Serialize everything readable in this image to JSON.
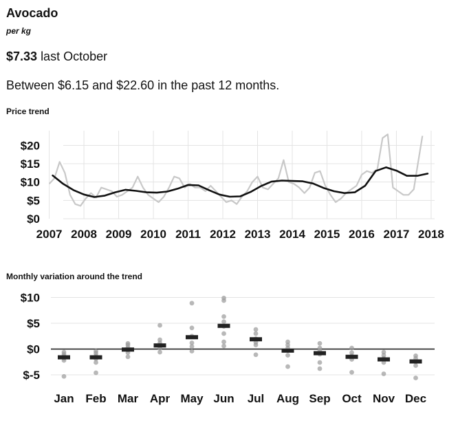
{
  "header": {
    "title": "Avocado",
    "unit": "per kg",
    "price_value": "$7.33",
    "price_suffix": "last October",
    "range_text": "Between $6.15 and $22.60 in the past 12 months."
  },
  "colors": {
    "trend_line": "#111111",
    "raw_line": "#c8c8c8",
    "grid": "#e3e3e3",
    "points": "#9a9a9a",
    "median": "#222222"
  },
  "chart_data": [
    {
      "type": "line",
      "title": "Price trend",
      "xlabel": "",
      "ylabel": "",
      "xlim": [
        2006.85,
        2018.1
      ],
      "ylim": [
        0,
        24
      ],
      "grid": true,
      "x_ticks": [
        2007,
        2008,
        2009,
        2010,
        2011,
        2012,
        2013,
        2014,
        2015,
        2016,
        2017,
        2018
      ],
      "x_tick_labels": [
        "2007",
        "2008",
        "2009",
        "2010",
        "2011",
        "2012",
        "2013",
        "2014",
        "2015",
        "2016",
        "2017",
        "2018"
      ],
      "y_ticks": [
        0,
        5,
        10,
        15,
        20
      ],
      "y_tick_labels": [
        "$0",
        "$5",
        "$10",
        "$15",
        "$20"
      ],
      "series": [
        {
          "role": "monthly price",
          "x": [
            2007.0,
            2007.15,
            2007.3,
            2007.45,
            2007.6,
            2007.75,
            2007.9,
            2008.05,
            2008.2,
            2008.35,
            2008.5,
            2008.65,
            2008.8,
            2008.95,
            2009.1,
            2009.25,
            2009.4,
            2009.55,
            2009.7,
            2009.85,
            2010.0,
            2010.15,
            2010.3,
            2010.45,
            2010.6,
            2010.75,
            2010.9,
            2011.05,
            2011.2,
            2011.35,
            2011.5,
            2011.65,
            2011.8,
            2011.95,
            2012.1,
            2012.25,
            2012.4,
            2012.55,
            2012.7,
            2012.85,
            2013.0,
            2013.15,
            2013.3,
            2013.45,
            2013.6,
            2013.75,
            2013.9,
            2014.05,
            2014.2,
            2014.35,
            2014.5,
            2014.65,
            2014.8,
            2014.95,
            2015.1,
            2015.25,
            2015.4,
            2015.55,
            2015.7,
            2015.85,
            2016.0,
            2016.15,
            2016.3,
            2016.45,
            2016.6,
            2016.75,
            2016.9,
            2017.05,
            2017.2,
            2017.35,
            2017.5,
            2017.6,
            2017.75
          ],
          "y": [
            9.5,
            11.0,
            15.5,
            12.5,
            6.5,
            4.0,
            3.5,
            5.5,
            7.0,
            5.8,
            8.5,
            8.0,
            7.5,
            6.0,
            6.5,
            7.5,
            8.5,
            11.5,
            8.5,
            6.5,
            5.5,
            4.5,
            6.0,
            8.5,
            11.5,
            11.0,
            8.5,
            9.5,
            8.5,
            8.5,
            7.5,
            9.0,
            7.5,
            6.0,
            4.5,
            5.0,
            4.0,
            6.0,
            7.5,
            10.0,
            11.5,
            8.5,
            8.0,
            9.5,
            11.0,
            16.0,
            10.0,
            9.5,
            8.5,
            7.0,
            8.5,
            12.5,
            13.0,
            9.0,
            6.5,
            4.5,
            5.5,
            7.0,
            8.0,
            9.0,
            12.0,
            13.0,
            12.5,
            13.5,
            22.0,
            23.0,
            8.5,
            7.5,
            6.5,
            6.5,
            8.0,
            14.0,
            22.6
          ]
        },
        {
          "role": "trend",
          "x": [
            2007.1,
            2007.4,
            2007.7,
            2008.0,
            2008.3,
            2008.6,
            2008.9,
            2009.2,
            2009.5,
            2009.8,
            2010.1,
            2010.4,
            2010.7,
            2011.0,
            2011.3,
            2011.6,
            2011.9,
            2012.2,
            2012.5,
            2012.8,
            2013.1,
            2013.4,
            2013.7,
            2014.0,
            2014.3,
            2014.6,
            2014.9,
            2015.2,
            2015.5,
            2015.8,
            2016.1,
            2016.4,
            2016.7,
            2017.0,
            2017.3,
            2017.6,
            2017.9
          ],
          "y": [
            11.8,
            9.5,
            7.8,
            6.6,
            5.9,
            6.3,
            7.2,
            7.9,
            7.6,
            7.2,
            7.1,
            7.4,
            8.2,
            9.2,
            9.1,
            7.8,
            6.6,
            6.0,
            6.1,
            7.3,
            8.9,
            10.1,
            10.4,
            10.3,
            10.2,
            9.6,
            8.4,
            7.5,
            7.0,
            7.2,
            9.0,
            13.0,
            14.0,
            13.1,
            11.7,
            11.7,
            12.3
          ]
        }
      ]
    },
    {
      "type": "scatter",
      "title": "Monthly variation around the trend",
      "xlabel": "",
      "ylabel": "",
      "ylim": [
        -7,
        11
      ],
      "grid": true,
      "zero_line": true,
      "categories": [
        "Jan",
        "Feb",
        "Mar",
        "Apr",
        "May",
        "Jun",
        "Jul",
        "Aug",
        "Sep",
        "Oct",
        "Nov",
        "Dec"
      ],
      "y_ticks": [
        -5,
        0,
        5,
        10
      ],
      "y_tick_labels": [
        "$-5",
        "$0",
        "$5",
        "$10"
      ],
      "medians": [
        -1.6,
        -1.6,
        -0.1,
        0.7,
        2.3,
        4.5,
        1.9,
        -0.3,
        -0.8,
        -1.5,
        -2.0,
        -2.4
      ],
      "points": [
        [
          -5.3,
          -2.2,
          -1.8,
          -1.4,
          -1.0,
          -0.6
        ],
        [
          -4.6,
          -2.6,
          -1.9,
          -1.3,
          -0.8,
          -0.4
        ],
        [
          -1.5,
          -0.7,
          -0.2,
          0.3,
          0.8,
          1.1
        ],
        [
          -0.6,
          0.2,
          0.8,
          1.2,
          1.8,
          4.6
        ],
        [
          -0.4,
          0.5,
          1.2,
          2.5,
          4.1,
          8.9
        ],
        [
          0.6,
          1.4,
          3.0,
          4.4,
          5.3,
          6.3,
          9.4,
          9.9
        ],
        [
          -1.1,
          0.8,
          1.3,
          2.0,
          3.0,
          3.8
        ],
        [
          -3.4,
          -1.2,
          -0.3,
          0.2,
          0.8,
          1.4
        ],
        [
          -3.8,
          -2.6,
          -1.0,
          -0.3,
          0.2,
          1.1
        ],
        [
          -4.5,
          -2.0,
          -1.3,
          -0.7,
          0.2
        ],
        [
          -4.8,
          -2.6,
          -1.8,
          -1.2,
          -0.6
        ],
        [
          -5.6,
          -3.2,
          -2.5,
          -1.8,
          -1.3
        ]
      ]
    }
  ]
}
